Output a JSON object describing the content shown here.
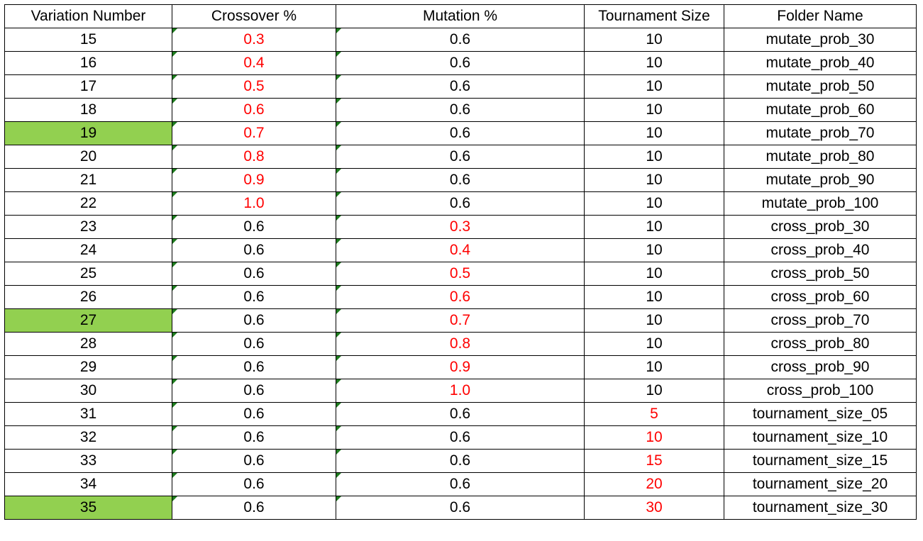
{
  "headers": [
    "Variation Number",
    "Crossover %",
    "Mutation %",
    "Tournament Size",
    "Folder Name"
  ],
  "colors": {
    "highlight": "#92d050",
    "red_text": "#ff0000",
    "indicator_triangle": "#1e7b1e"
  },
  "rows": [
    {
      "variation": "15",
      "crossover": "0.3",
      "mutation": "0.6",
      "tournament": "10",
      "folder": "mutate_prob_30",
      "red": "crossover",
      "highlight": false
    },
    {
      "variation": "16",
      "crossover": "0.4",
      "mutation": "0.6",
      "tournament": "10",
      "folder": "mutate_prob_40",
      "red": "crossover",
      "highlight": false
    },
    {
      "variation": "17",
      "crossover": "0.5",
      "mutation": "0.6",
      "tournament": "10",
      "folder": "mutate_prob_50",
      "red": "crossover",
      "highlight": false
    },
    {
      "variation": "18",
      "crossover": "0.6",
      "mutation": "0.6",
      "tournament": "10",
      "folder": "mutate_prob_60",
      "red": "crossover",
      "highlight": false
    },
    {
      "variation": "19",
      "crossover": "0.7",
      "mutation": "0.6",
      "tournament": "10",
      "folder": "mutate_prob_70",
      "red": "crossover",
      "highlight": true
    },
    {
      "variation": "20",
      "crossover": "0.8",
      "mutation": "0.6",
      "tournament": "10",
      "folder": "mutate_prob_80",
      "red": "crossover",
      "highlight": false
    },
    {
      "variation": "21",
      "crossover": "0.9",
      "mutation": "0.6",
      "tournament": "10",
      "folder": "mutate_prob_90",
      "red": "crossover",
      "highlight": false
    },
    {
      "variation": "22",
      "crossover": "1.0",
      "mutation": "0.6",
      "tournament": "10",
      "folder": "mutate_prob_100",
      "red": "crossover",
      "highlight": false
    },
    {
      "variation": "23",
      "crossover": "0.6",
      "mutation": "0.3",
      "tournament": "10",
      "folder": "cross_prob_30",
      "red": "mutation",
      "highlight": false
    },
    {
      "variation": "24",
      "crossover": "0.6",
      "mutation": "0.4",
      "tournament": "10",
      "folder": "cross_prob_40",
      "red": "mutation",
      "highlight": false
    },
    {
      "variation": "25",
      "crossover": "0.6",
      "mutation": "0.5",
      "tournament": "10",
      "folder": "cross_prob_50",
      "red": "mutation",
      "highlight": false
    },
    {
      "variation": "26",
      "crossover": "0.6",
      "mutation": "0.6",
      "tournament": "10",
      "folder": "cross_prob_60",
      "red": "mutation",
      "highlight": false
    },
    {
      "variation": "27",
      "crossover": "0.6",
      "mutation": "0.7",
      "tournament": "10",
      "folder": "cross_prob_70",
      "red": "mutation",
      "highlight": true
    },
    {
      "variation": "28",
      "crossover": "0.6",
      "mutation": "0.8",
      "tournament": "10",
      "folder": "cross_prob_80",
      "red": "mutation",
      "highlight": false
    },
    {
      "variation": "29",
      "crossover": "0.6",
      "mutation": "0.9",
      "tournament": "10",
      "folder": "cross_prob_90",
      "red": "mutation",
      "highlight": false
    },
    {
      "variation": "30",
      "crossover": "0.6",
      "mutation": "1.0",
      "tournament": "10",
      "folder": "cross_prob_100",
      "red": "mutation",
      "highlight": false
    },
    {
      "variation": "31",
      "crossover": "0.6",
      "mutation": "0.6",
      "tournament": "5",
      "folder": "tournament_size_05",
      "red": "tournament",
      "highlight": false
    },
    {
      "variation": "32",
      "crossover": "0.6",
      "mutation": "0.6",
      "tournament": "10",
      "folder": "tournament_size_10",
      "red": "tournament",
      "highlight": false
    },
    {
      "variation": "33",
      "crossover": "0.6",
      "mutation": "0.6",
      "tournament": "15",
      "folder": "tournament_size_15",
      "red": "tournament",
      "highlight": false
    },
    {
      "variation": "34",
      "crossover": "0.6",
      "mutation": "0.6",
      "tournament": "20",
      "folder": "tournament_size_20",
      "red": "tournament",
      "highlight": false
    },
    {
      "variation": "35",
      "crossover": "0.6",
      "mutation": "0.6",
      "tournament": "30",
      "folder": "tournament_size_30",
      "red": "tournament",
      "highlight": true
    }
  ]
}
